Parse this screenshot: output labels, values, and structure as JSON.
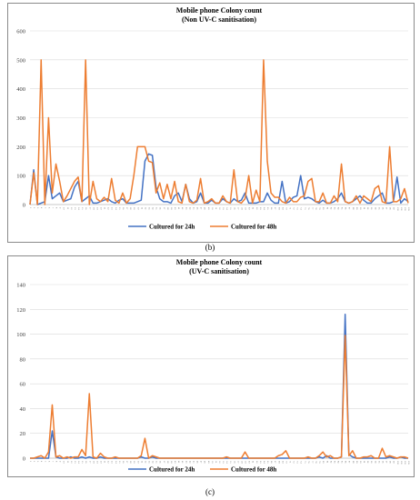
{
  "charts": [
    {
      "panel_label": "(b)",
      "chart_data": {
        "type": "line",
        "title": "Mobile phone Colony count",
        "subtitle": "(Non UV-C sanitisation)",
        "xlabel": "",
        "ylabel": "",
        "ylim": [
          0,
          600
        ],
        "yticks": [
          0,
          100,
          200,
          300,
          400,
          500,
          600
        ],
        "grid": true,
        "legend": "bottom",
        "x": [
          1,
          2,
          3,
          4,
          5,
          6,
          7,
          8,
          9,
          10,
          11,
          12,
          13,
          14,
          15,
          16,
          17,
          18,
          19,
          20,
          21,
          22,
          23,
          24,
          25,
          26,
          27,
          28,
          29,
          30,
          31,
          32,
          33,
          34,
          35,
          36,
          37,
          38,
          39,
          40,
          41,
          42,
          43,
          44,
          45,
          46,
          47,
          48,
          49,
          50,
          51,
          52,
          53,
          54,
          55,
          56,
          57,
          58,
          59,
          60,
          61,
          62,
          63,
          64,
          65,
          66,
          67,
          68,
          69,
          70,
          71,
          72,
          73,
          74,
          75,
          76,
          77,
          78,
          79,
          80,
          81,
          82,
          83,
          84,
          85,
          86,
          87,
          88,
          89,
          90,
          91,
          92,
          93,
          94,
          95,
          96,
          97,
          98,
          99,
          100,
          101,
          102,
          103
        ],
        "series": [
          {
            "name": "Cultured for 24h",
            "color": "#4472c4",
            "values": [
              0,
              120,
              0,
              5,
              10,
              100,
              20,
              30,
              40,
              10,
              15,
              20,
              60,
              80,
              10,
              20,
              30,
              5,
              5,
              10,
              15,
              20,
              10,
              5,
              15,
              20,
              5,
              5,
              5,
              10,
              15,
              150,
              175,
              170,
              60,
              20,
              10,
              10,
              5,
              30,
              40,
              10,
              70,
              20,
              5,
              10,
              40,
              5,
              5,
              15,
              5,
              5,
              20,
              10,
              5,
              20,
              10,
              15,
              40,
              5,
              5,
              5,
              10,
              10,
              40,
              15,
              5,
              5,
              80,
              5,
              10,
              25,
              30,
              100,
              20,
              25,
              20,
              10,
              5,
              15,
              5,
              5,
              10,
              20,
              40,
              10,
              5,
              10,
              20,
              30,
              15,
              5,
              5,
              20,
              30,
              40,
              5,
              5,
              10,
              95,
              5,
              20,
              10
            ]
          },
          {
            "name": "Cultured for 48h",
            "color": "#ed7d31",
            "values": [
              0,
              110,
              0,
              500,
              0,
              300,
              40,
              140,
              80,
              10,
              30,
              55,
              80,
              95,
              10,
              500,
              0,
              80,
              20,
              10,
              25,
              10,
              90,
              15,
              5,
              40,
              5,
              20,
              100,
              200,
              200,
              200,
              150,
              145,
              40,
              75,
              20,
              70,
              20,
              80,
              10,
              5,
              70,
              10,
              5,
              15,
              90,
              5,
              10,
              20,
              5,
              5,
              30,
              10,
              5,
              120,
              10,
              5,
              20,
              100,
              5,
              50,
              10,
              500,
              150,
              40,
              25,
              25,
              10,
              5,
              25,
              10,
              10,
              25,
              30,
              80,
              90,
              10,
              10,
              40,
              5,
              5,
              30,
              10,
              140,
              10,
              5,
              10,
              30,
              5,
              30,
              20,
              10,
              55,
              65,
              10,
              5,
              200,
              10,
              10,
              20,
              55,
              5
            ]
          }
        ]
      }
    },
    {
      "panel_label": "(c)",
      "chart_data": {
        "type": "line",
        "title": "Mobile phone Colony count",
        "subtitle": "(UV-C sanitisation)",
        "xlabel": "",
        "ylabel": "",
        "ylim": [
          0,
          140
        ],
        "yticks": [
          0,
          20,
          40,
          60,
          80,
          100,
          120,
          140
        ],
        "grid": true,
        "legend": "bottom",
        "x": [
          1,
          2,
          3,
          4,
          5,
          6,
          7,
          8,
          9,
          10,
          11,
          12,
          13,
          14,
          15,
          16,
          17,
          18,
          19,
          20,
          21,
          22,
          23,
          24,
          25,
          26,
          27,
          28,
          29,
          30,
          31,
          32,
          33,
          34,
          35,
          36,
          37,
          38,
          39,
          40,
          41,
          42,
          43,
          44,
          45,
          46,
          47,
          48,
          49,
          50,
          51,
          52,
          53,
          54,
          55,
          56,
          57,
          58,
          59,
          60,
          61,
          62,
          63,
          64,
          65,
          66,
          67,
          68,
          69,
          70,
          71,
          72,
          73,
          74,
          75,
          76,
          77,
          78,
          79,
          80,
          81,
          82,
          83,
          84,
          85,
          86,
          87,
          88,
          89,
          90,
          91,
          92,
          93,
          94,
          95,
          96,
          97,
          98,
          99,
          100,
          101,
          102,
          103
        ],
        "series": [
          {
            "name": "Cultured for 24h",
            "color": "#4472c4",
            "values": [
              0,
              0,
              0,
              0,
              0,
              0,
              22,
              1,
              0,
              0,
              0,
              1,
              0,
              0,
              1,
              0,
              1,
              0,
              0,
              1,
              0,
              0,
              0,
              0,
              0,
              0,
              0,
              0,
              0,
              0,
              1,
              0,
              0,
              1,
              0,
              0,
              0,
              0,
              0,
              0,
              0,
              0,
              0,
              0,
              0,
              0,
              0,
              0,
              0,
              0,
              0,
              0,
              0,
              0,
              0,
              0,
              0,
              0,
              0,
              0,
              0,
              0,
              0,
              0,
              0,
              0,
              0,
              0,
              0,
              0,
              0,
              0,
              0,
              0,
              0,
              0,
              0,
              0,
              1,
              0,
              2,
              0,
              0,
              0,
              1,
              116,
              3,
              1,
              0,
              0,
              0,
              0,
              0,
              0,
              0,
              0,
              0,
              1,
              0,
              0,
              1,
              0,
              0
            ]
          },
          {
            "name": "Cultured for 48h",
            "color": "#ed7d31",
            "values": [
              0,
              0,
              1,
              2,
              0,
              5,
              43,
              1,
              2,
              0,
              1,
              0,
              1,
              1,
              7,
              2,
              52,
              1,
              0,
              4,
              1,
              0,
              0,
              1,
              0,
              0,
              0,
              0,
              0,
              0,
              2,
              16,
              0,
              2,
              1,
              0,
              0,
              0,
              0,
              0,
              0,
              0,
              0,
              0,
              0,
              0,
              0,
              0,
              0,
              0,
              0,
              0,
              0,
              1,
              0,
              0,
              0,
              0,
              5,
              0,
              0,
              0,
              0,
              0,
              0,
              0,
              0,
              2,
              3,
              6,
              0,
              0,
              0,
              0,
              0,
              1,
              0,
              0,
              2,
              5,
              1,
              2,
              0,
              0,
              1,
              99,
              2,
              6,
              0,
              0,
              1,
              1,
              2,
              0,
              0,
              8,
              1,
              2,
              1,
              0,
              1,
              1,
              0
            ]
          }
        ]
      }
    }
  ]
}
